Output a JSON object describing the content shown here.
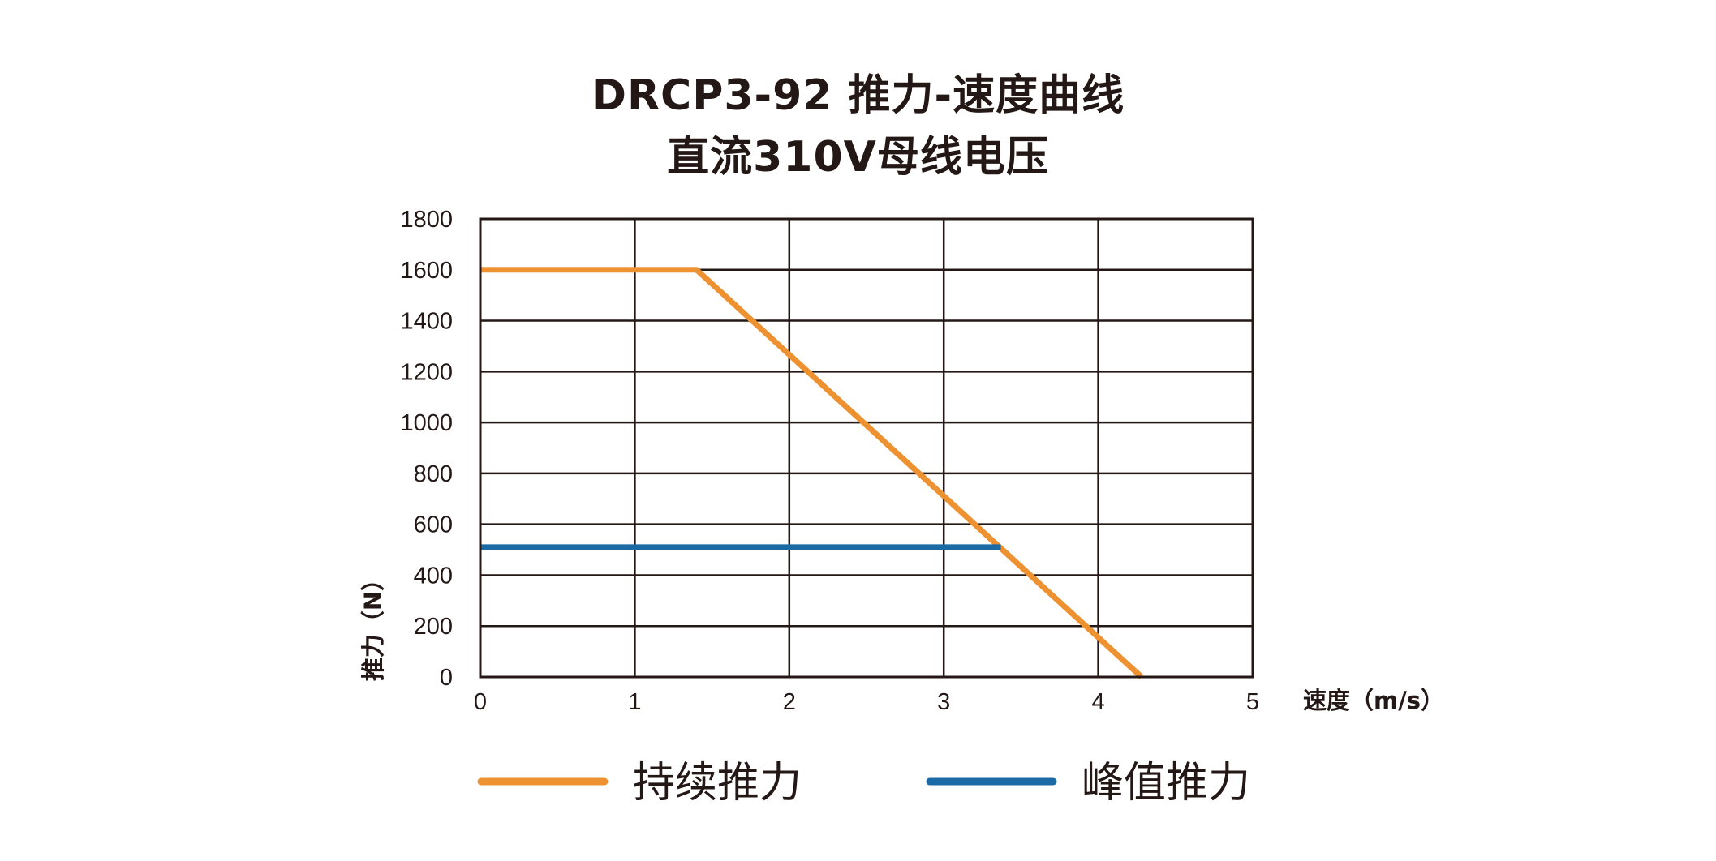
{
  "title": {
    "line1": "DRCP3-92 推力-速度曲线",
    "line2": "直流310V母线电压"
  },
  "chart_data": {
    "type": "line",
    "title": "DRCP3-92 推力-速度曲线",
    "subtitle": "直流310V母线电压",
    "xlabel": "速度（m/s）",
    "ylabel": "推力（N）",
    "xlim": [
      0,
      5
    ],
    "ylim": [
      0,
      1800
    ],
    "xticks": [
      "0",
      "1",
      "2",
      "3",
      "4",
      "5"
    ],
    "yticks": [
      "0",
      "200",
      "400",
      "600",
      "800",
      "1000",
      "1200",
      "1400",
      "1600",
      "1800"
    ],
    "grid": true,
    "legend_position": "bottom",
    "series": [
      {
        "name": "持续推力",
        "color": "#EE9130",
        "points": [
          [
            0,
            1600
          ],
          [
            1.4,
            1600
          ],
          [
            4.28,
            0
          ]
        ]
      },
      {
        "name": "峰值推力",
        "color": "#1B6AA5",
        "points": [
          [
            0,
            510
          ],
          [
            3.37,
            510
          ]
        ]
      }
    ]
  }
}
